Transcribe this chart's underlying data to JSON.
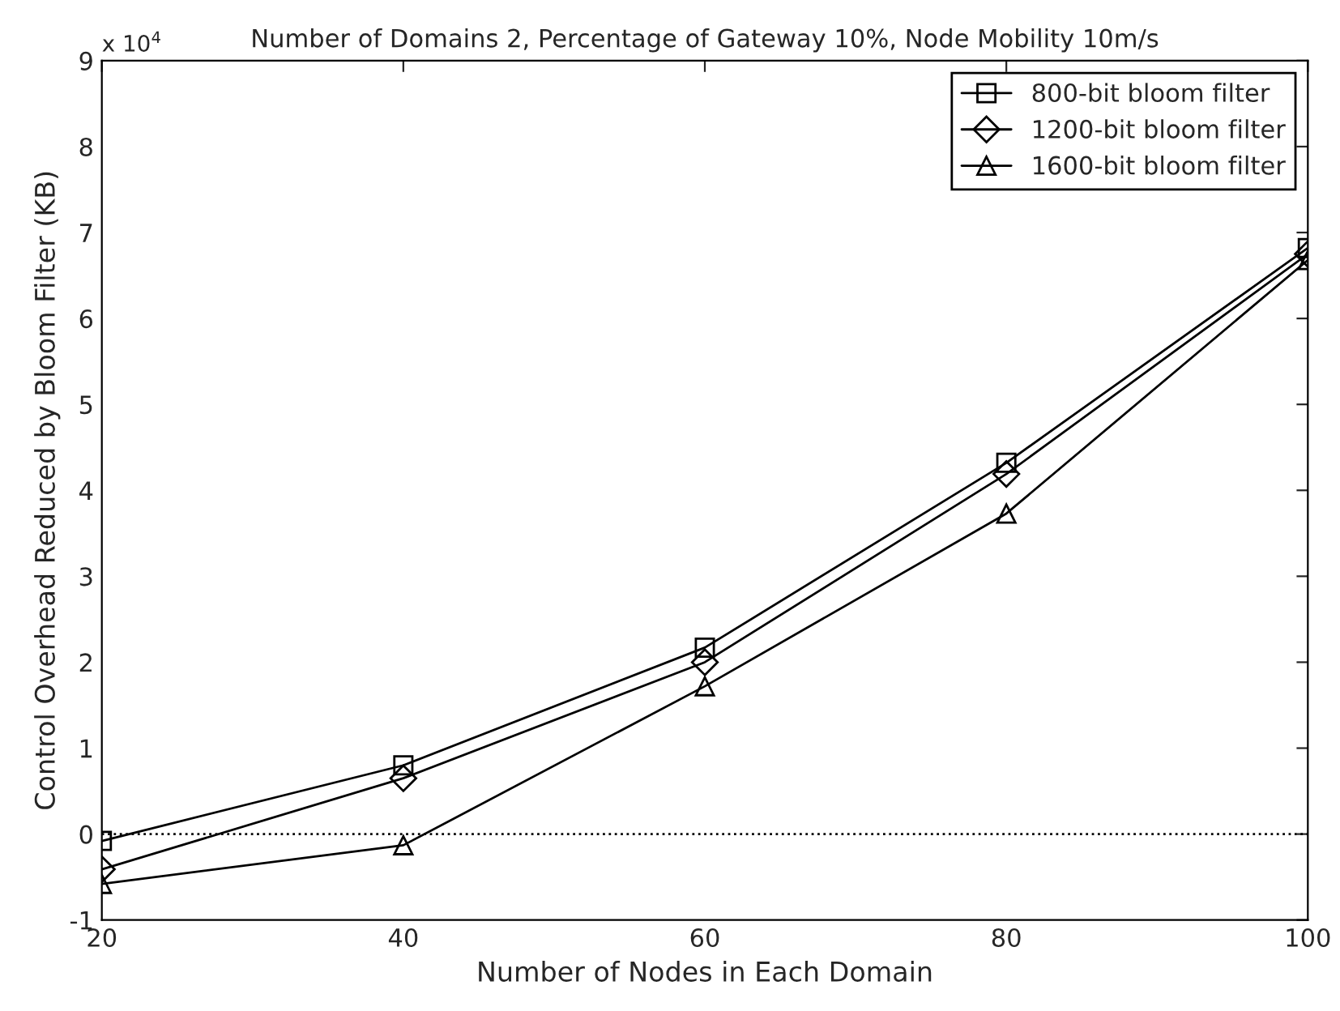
{
  "chart_data": {
    "type": "line",
    "title": "Number of Domains 2, Percentage of Gateway 10%, Node Mobility 10m/s",
    "xlabel": "Number of Nodes in Each Domain",
    "ylabel": "Control Overhead Reduced by Bloom Filter (KB)",
    "annotations": [
      "x 10$^{4}$"
    ],
    "x": [
      20,
      40,
      60,
      80,
      100
    ],
    "series": [
      {
        "name": "800-bit bloom filter",
        "color": "#000000",
        "marker": "square",
        "values": [
          -0.08,
          0.8,
          2.17,
          4.32,
          6.82
        ]
      },
      {
        "name": "1200-bit bloom filter",
        "color": "#000000",
        "marker": "diamond",
        "values": [
          -0.41,
          0.65,
          2.0,
          4.19,
          6.75
        ]
      },
      {
        "name": "1600-bit bloom filter",
        "color": "#000000",
        "marker": "triangle",
        "values": [
          -0.58,
          -0.13,
          1.72,
          3.73,
          6.68
        ]
      }
    ],
    "ref_lines": [
      {
        "axis": "y",
        "value": 0,
        "color": "#000000",
        "line_style": "dotted"
      }
    ],
    "xlim": [
      20,
      100
    ],
    "xticks": [
      20,
      40,
      60,
      80,
      100
    ],
    "ylim": [
      -1,
      9
    ],
    "yticks": [
      -1,
      0,
      1,
      2,
      3,
      4,
      5,
      6,
      7,
      8,
      9
    ],
    "grid": false,
    "legend": "top right",
    "line_style": "solid"
  }
}
